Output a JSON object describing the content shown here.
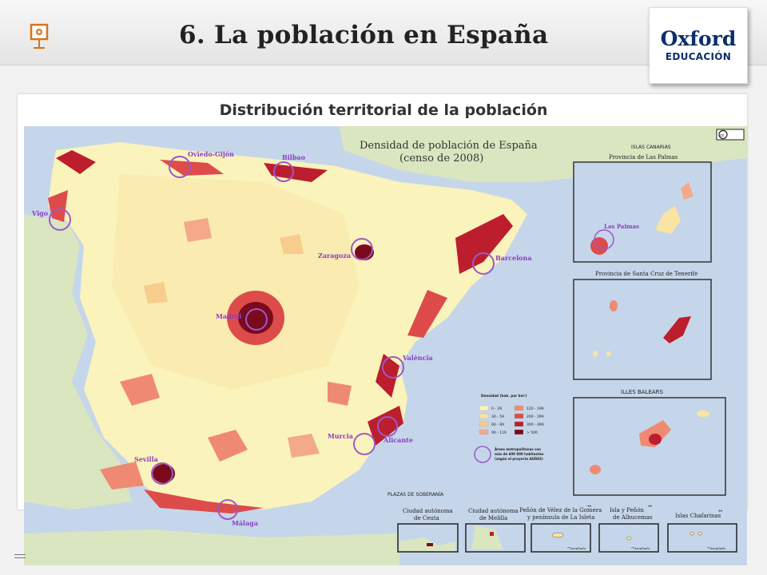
{
  "slide": {
    "title": "6. La población en España",
    "subtitle": "Distribución territorial de la población"
  },
  "logo": {
    "brand": "Oxford",
    "sub": "EDUCACIÓN"
  },
  "map": {
    "title_line1": "Densidad de población de España",
    "title_line2": "(censo de 2008)",
    "license_badge": "cc",
    "cities": [
      {
        "name": "Oviedo-Gijón"
      },
      {
        "name": "Bilbao"
      },
      {
        "name": "Vigo"
      },
      {
        "name": "Zaragoza"
      },
      {
        "name": "Barcelona"
      },
      {
        "name": "Madrid"
      },
      {
        "name": "València"
      },
      {
        "name": "Alicante"
      },
      {
        "name": "Murcia"
      },
      {
        "name": "Sevilla"
      },
      {
        "name": "Málaga"
      }
    ],
    "canarias": {
      "heading": "ISLAS CANARIAS",
      "las_palmas_prov": "Provincia de Las Palmas",
      "las_palmas_city": "Las Palmas",
      "tenerife_prov": "Provincia de Santa Cruz de Tenerife"
    },
    "baleares": {
      "heading": "ILLES BALEARS"
    },
    "legend": {
      "title": "Densidad (hab. por km²)",
      "items": [
        {
          "label": "0 - 29",
          "color": "#fbf3bc"
        },
        {
          "label": "120 - 199",
          "color": "#ef8a72"
        },
        {
          "label": "30 - 59",
          "color": "#f9e4a3"
        },
        {
          "label": "200 - 299",
          "color": "#dd4b4b"
        },
        {
          "label": "60 - 89",
          "color": "#f8cc8c"
        },
        {
          "label": "300 - 499",
          "color": "#bc1e2e"
        },
        {
          "label": "90 - 119",
          "color": "#f3a98a"
        },
        {
          "label": "> 500",
          "color": "#7a0a1c"
        }
      ],
      "areas_line1": "Áreas metropolitanas con",
      "areas_line2": "más de 600 000 habitantes",
      "areas_line3": "(según el proyecto AUDES)"
    },
    "plazas": {
      "heading": "PLAZAS DE SOBERANÍA",
      "ceuta_1": "Ciudad autónoma",
      "ceuta_2": "de Ceuta",
      "melilla_1": "Ciudad autónoma",
      "melilla_2": "de Melilla",
      "velez_1": "Peñón de Vélez de la Gomera",
      "velez_2": "y península de La Isleta",
      "alhucemas_1": "Isla y Peñón",
      "alhucemas_2": "de Alhucemas",
      "chafarinas": "Islas Chafarinas",
      "star": "**",
      "ampliado": "**Ampliado"
    },
    "colors": {
      "sea": "#c6d6ea",
      "land_foreign": "#d9e6c0",
      "low": "#fbf3bc",
      "high": "#7a0a1c",
      "circle": "#9b59c9"
    }
  }
}
